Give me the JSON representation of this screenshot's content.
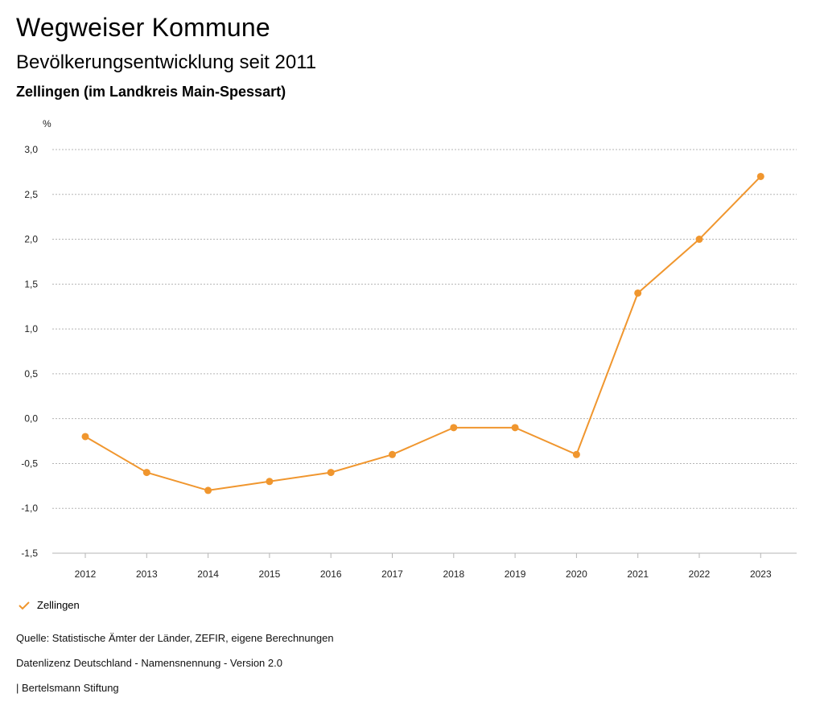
{
  "header": {
    "title": "Wegweiser Kommune",
    "subtitle": "Bevölkerungsentwicklung seit 2011",
    "region": "Zellingen (im Landkreis Main-Spessart)"
  },
  "chart_data": {
    "type": "line",
    "ylabel": "%",
    "xlabel": "",
    "x": [
      "2012",
      "2013",
      "2014",
      "2015",
      "2016",
      "2017",
      "2018",
      "2019",
      "2020",
      "2021",
      "2022",
      "2023"
    ],
    "series": [
      {
        "name": "Zellingen",
        "values": [
          -0.2,
          -0.6,
          -0.8,
          -0.7,
          -0.6,
          -0.4,
          -0.1,
          -0.1,
          -0.4,
          1.4,
          2.0,
          2.7
        ]
      }
    ],
    "ylim": [
      -1.5,
      3.0
    ],
    "yticks": [
      3.0,
      2.5,
      2.0,
      1.5,
      1.0,
      0.5,
      0.0,
      -0.5,
      -1.0,
      -1.5
    ],
    "ytick_labels": [
      "3,0",
      "2,5",
      "2,0",
      "1,5",
      "1,0",
      "0,5",
      "0,0",
      "-0,5",
      "-1,0",
      "-1,5"
    ],
    "grid": true,
    "legend_position": "bottom-left",
    "color": "#f0962e"
  },
  "legend": {
    "label": "Zellingen"
  },
  "footer": {
    "source": "Quelle: Statistische Ämter der Länder, ZEFIR, eigene Berechnungen",
    "license": "Datenlizenz Deutschland - Namensnennung - Version 2.0",
    "credit": "| Bertelsmann Stiftung"
  }
}
